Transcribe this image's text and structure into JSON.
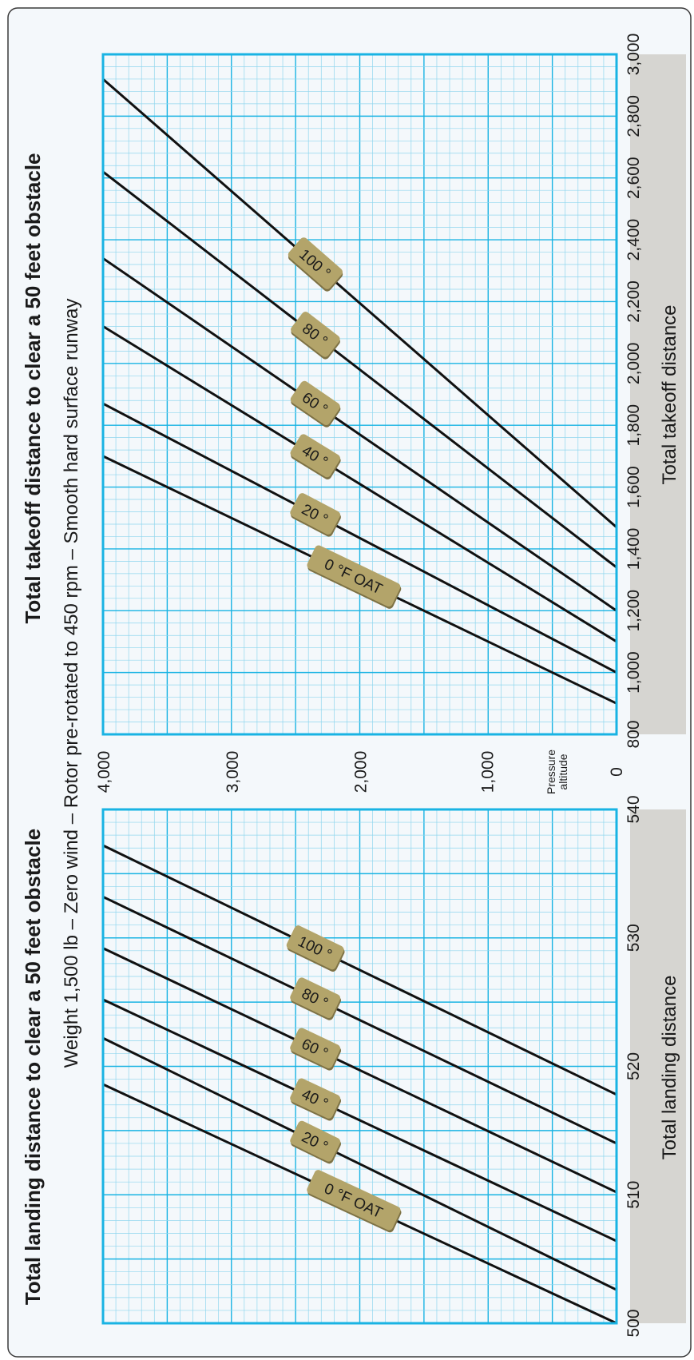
{
  "colors": {
    "background": "#f4f8fb",
    "grid_minor": "#8fd6ee",
    "grid_major": "#19b3e3",
    "frame": "#19b3e3",
    "line": "#111111",
    "label_fill": "#b3a46a",
    "label_shadow": "#7e7245",
    "axis_band": "#d6d5d1"
  },
  "subtitle": "Weight 1,500 lb – Zero wind – Rotor pre-rotated to 450 rpm – Smooth hard surface runway",
  "shared_axis": {
    "label_line1": "Pressure",
    "label_line2": "altitude",
    "ticks": [
      "0",
      "1,000",
      "2,000",
      "3,000",
      "4,000"
    ]
  },
  "chart_data": [
    {
      "type": "line",
      "title": "Total landing distance to clear a 50 feet obstacle",
      "xlabel": "Total landing distance",
      "ylabel": "Pressure altitude",
      "xlim": [
        500,
        540
      ],
      "ylim": [
        0,
        4000
      ],
      "x_ticks": [
        "500",
        "510",
        "520",
        "530",
        "540"
      ],
      "series": [
        {
          "name": "0 °F OAT",
          "x": [
            500,
            518.6
          ],
          "y": [
            0,
            4000
          ]
        },
        {
          "name": "20 °",
          "x": [
            502.6,
            522.2
          ],
          "y": [
            0,
            4000
          ]
        },
        {
          "name": "40 °",
          "x": [
            506.4,
            525.2
          ],
          "y": [
            0,
            4000
          ]
        },
        {
          "name": "60 °",
          "x": [
            510.2,
            529.2
          ],
          "y": [
            0,
            4000
          ]
        },
        {
          "name": "80 °",
          "x": [
            514.0,
            533.2
          ],
          "y": [
            0,
            4000
          ]
        },
        {
          "name": "100 °",
          "x": [
            517.8,
            537.2
          ],
          "y": [
            0,
            4000
          ]
        }
      ],
      "grid": true
    },
    {
      "type": "line",
      "title": "Total takeoff distance to clear a 50 feet obstacle",
      "xlabel": "Total takeoff distance",
      "ylabel": "Pressure altitude",
      "xlim": [
        800,
        3000
      ],
      "ylim": [
        0,
        4000
      ],
      "x_ticks": [
        "800",
        "1,000",
        "1,200",
        "1,400",
        "1,600",
        "1,800",
        "2,000",
        "2,200",
        "2,400",
        "2,600",
        "2,800",
        "3,000"
      ],
      "series": [
        {
          "name": "0 °F OAT",
          "x": [
            900,
            1700
          ],
          "y": [
            0,
            4000
          ]
        },
        {
          "name": "20 °",
          "x": [
            1000,
            1870
          ],
          "y": [
            0,
            4000
          ]
        },
        {
          "name": "40 °",
          "x": [
            1100,
            2120
          ],
          "y": [
            0,
            4000
          ]
        },
        {
          "name": "60 °",
          "x": [
            1200,
            2340
          ],
          "y": [
            0,
            4000
          ]
        },
        {
          "name": "80 °",
          "x": [
            1340,
            2620
          ],
          "y": [
            0,
            4000
          ]
        },
        {
          "name": "100 °",
          "x": [
            1470,
            2920
          ],
          "y": [
            0,
            4000
          ]
        }
      ],
      "grid": true
    }
  ]
}
